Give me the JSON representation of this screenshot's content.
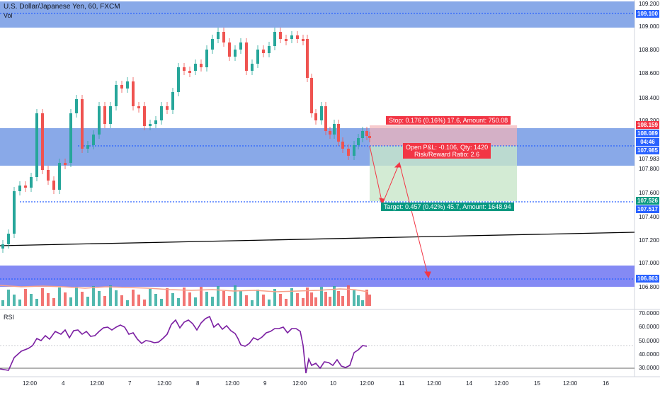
{
  "header": {
    "title": "U.S. Dollar/Japanese Yen, 60, FXCM",
    "volume_label": "Vol"
  },
  "rsi": {
    "label": "RSI"
  },
  "price_axis": [
    "109.200",
    "109.000",
    "108.800",
    "108.600",
    "108.400",
    "108.200",
    "107.983",
    "107.800",
    "107.600",
    "107.400",
    "107.200",
    "107.000",
    "106.800"
  ],
  "price_tags": [
    {
      "text": "109.100",
      "color": "#2962ff"
    },
    {
      "text": "108.159",
      "color": "#f23645"
    },
    {
      "text": "108.089",
      "color": "#2962ff"
    },
    {
      "text": "04:46",
      "color": "#2962ff"
    },
    {
      "text": "107.985",
      "color": "#2962ff"
    },
    {
      "text": "107.526",
      "color": "#089981"
    },
    {
      "text": "107.517",
      "color": "#2962ff"
    },
    {
      "text": "106.863",
      "color": "#2962ff"
    }
  ],
  "rsi_axis": [
    "70.0000",
    "60.0000",
    "50.0000",
    "40.0000",
    "30.0000"
  ],
  "time_axis": [
    "12:00",
    "4",
    "12:00",
    "7",
    "12:00",
    "8",
    "12:00",
    "9",
    "12:00",
    "10",
    "12:00",
    "11",
    "12:00",
    "14",
    "12:00",
    "15",
    "12:00",
    "16"
  ],
  "trade": {
    "stop_label": "Stop: 0.176 (0.16%) 17.6, Amount: 750.08",
    "open_label_line1": "Open P&L: -0.106, Qty: 1420",
    "open_label_line2": "Risk/Reward Ratio: 2.6",
    "target_label": "Target: 0.457 (0.42%) 45.7, Amount: 1648.94"
  },
  "colors": {
    "up": "#26a69a",
    "down": "#ef5350",
    "rsi": "#7b1fa2",
    "zone": "#4a7bdb",
    "stop_zone": "#f4b4b8",
    "target_zone": "#c8e6c9"
  }
}
